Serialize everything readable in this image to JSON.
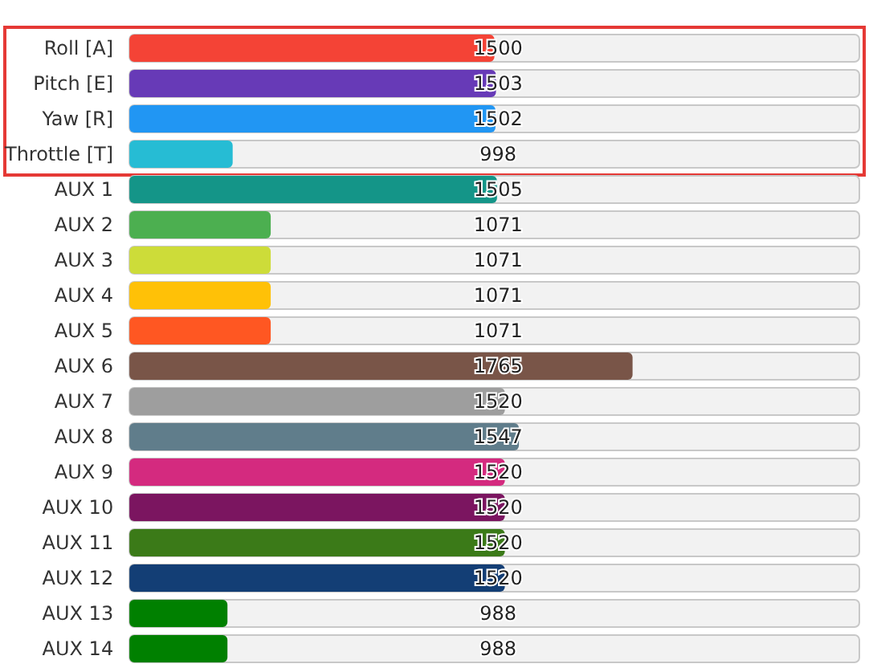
{
  "chart_data": {
    "type": "bar",
    "orientation": "horizontal",
    "categories": [
      "Roll [A]",
      "Pitch [E]",
      "Yaw [R]",
      "Throttle [T]",
      "AUX 1",
      "AUX 2",
      "AUX 3",
      "AUX 4",
      "AUX 5",
      "AUX 6",
      "AUX 7",
      "AUX 8",
      "AUX 9",
      "AUX 10",
      "AUX 11",
      "AUX 12",
      "AUX 13",
      "AUX 14"
    ],
    "values": [
      1500,
      1503,
      1502,
      998,
      1505,
      1071,
      1071,
      1071,
      1071,
      1765,
      1520,
      1547,
      1520,
      1520,
      1520,
      1520,
      988,
      988
    ],
    "colors": [
      "#f44336",
      "#673ab7",
      "#2196f3",
      "#26bcd4",
      "#149588",
      "#4caf50",
      "#cddc39",
      "#ffc107",
      "#ff5722",
      "#795548",
      "#9e9e9e",
      "#607d8b",
      "#d42a7f",
      "#7b1560",
      "#3b7a18",
      "#133e75",
      "#008000",
      "#008000"
    ],
    "xlim": [
      800,
      2200
    ],
    "tick_labels": "y",
    "data_labels": true
  }
}
